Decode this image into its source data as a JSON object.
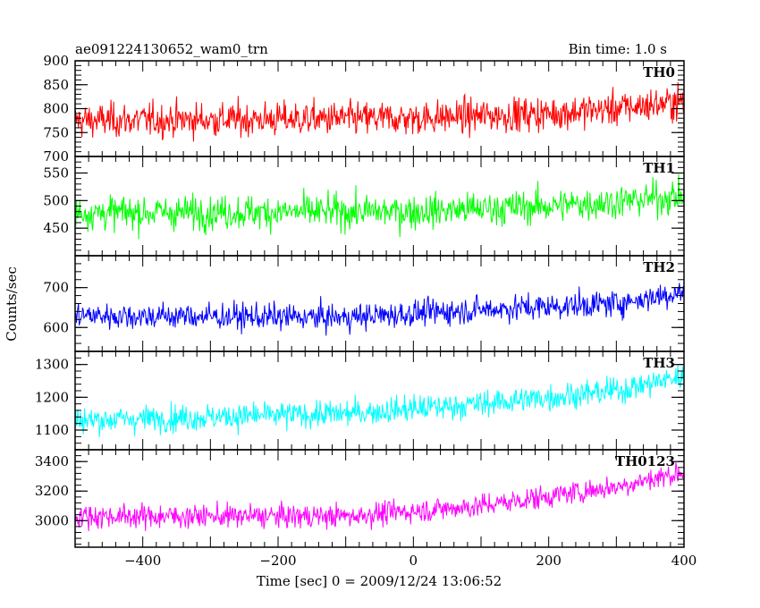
{
  "header": {
    "title": "ae091224130652_wam0_trn",
    "bin_time": "Bin time: 1.0 s"
  },
  "chart_data": {
    "type": "line",
    "title": "ae091224130652_wam0_trn",
    "xlabel": "Time [sec] 0 = 2009/12/24 13:06:52",
    "ylabel": "Counts/sec",
    "xlim": [
      -500,
      400
    ],
    "x_range": [
      -500,
      400
    ],
    "x_step": 1,
    "x_ticks": [
      -400,
      -200,
      0,
      200,
      400
    ],
    "x_tick_labels": [
      "−400",
      "−200",
      "0",
      "200",
      "400"
    ],
    "grid": false,
    "panels": [
      {
        "name": "TH0",
        "color": "#ff0000",
        "ylim": [
          700,
          900
        ],
        "y_ticks": [
          700,
          750,
          800,
          850,
          900
        ],
        "y_tick_labels": [
          "700",
          "750",
          "800",
          "850",
          "900"
        ],
        "trend": [
          [
            -500,
            775
          ],
          [
            0,
            780
          ],
          [
            200,
            790
          ],
          [
            300,
            800
          ],
          [
            400,
            815
          ]
        ],
        "noise": 28
      },
      {
        "name": "TH1",
        "color": "#00ff00",
        "ylim": [
          400,
          580
        ],
        "y_ticks": [
          450,
          500,
          550
        ],
        "y_tick_labels": [
          "450",
          "500",
          "550"
        ],
        "trend": [
          [
            -500,
            478
          ],
          [
            0,
            480
          ],
          [
            200,
            490
          ],
          [
            300,
            498
          ],
          [
            400,
            508
          ]
        ],
        "noise": 24
      },
      {
        "name": "TH2",
        "color": "#0000ff",
        "ylim": [
          540,
          780
        ],
        "y_ticks": [
          600,
          700
        ],
        "y_tick_labels": [
          "600",
          "700"
        ],
        "trend": [
          [
            -500,
            630
          ],
          [
            -100,
            625
          ],
          [
            100,
            645
          ],
          [
            300,
            660
          ],
          [
            400,
            690
          ]
        ],
        "noise": 26
      },
      {
        "name": "TH3",
        "color": "#00ffff",
        "ylim": [
          1040,
          1340
        ],
        "y_ticks": [
          1100,
          1200,
          1300
        ],
        "y_tick_labels": [
          "1100",
          "1200",
          "1300"
        ],
        "trend": [
          [
            -500,
            1130
          ],
          [
            -100,
            1150
          ],
          [
            100,
            1180
          ],
          [
            300,
            1220
          ],
          [
            400,
            1265
          ]
        ],
        "noise": 32
      },
      {
        "name": "TH0123",
        "color": "#ff00ff",
        "ylim": [
          2820,
          3480
        ],
        "y_ticks": [
          3000,
          3200,
          3400
        ],
        "y_tick_labels": [
          "3000",
          "3200",
          "3400"
        ],
        "trend": [
          [
            -500,
            3030
          ],
          [
            -100,
            3030
          ],
          [
            100,
            3100
          ],
          [
            300,
            3230
          ],
          [
            400,
            3330
          ]
        ],
        "noise": 62
      }
    ]
  }
}
